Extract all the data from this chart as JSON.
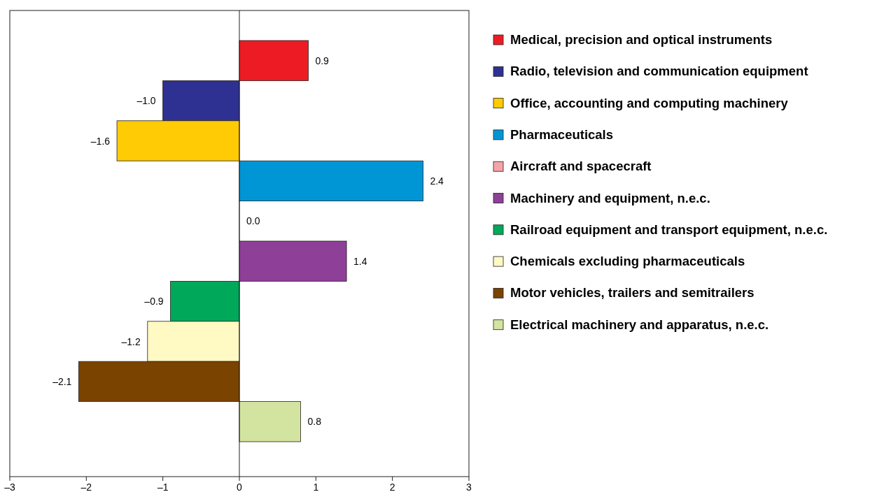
{
  "chart_data": {
    "type": "bar",
    "orientation": "horizontal",
    "categories": [
      null
    ],
    "series": [
      {
        "name": "Medical, precision and optical instruments",
        "color": "#ed1c24",
        "values": [
          0.9
        ],
        "value_labels": [
          "0.9"
        ]
      },
      {
        "name": "Radio, television and communication equipment",
        "color": "#2e3192",
        "values": [
          -1.0
        ],
        "value_labels": [
          "–1.0"
        ]
      },
      {
        "name": "Office, accounting and computing machinery",
        "color": "#ffcb05",
        "values": [
          -1.6
        ],
        "value_labels": [
          "–1.6"
        ]
      },
      {
        "name": "Pharmaceuticals",
        "color": "#0096d6",
        "values": [
          2.4
        ],
        "value_labels": [
          "2.4"
        ]
      },
      {
        "name": "Aircraft and spacecraft",
        "color": "#f4a3a8",
        "values": [
          0.0
        ],
        "value_labels": [
          "0.0"
        ]
      },
      {
        "name": "Machinery and equipment, n.e.c.",
        "color": "#8e4098",
        "values": [
          1.4
        ],
        "value_labels": [
          "1.4"
        ]
      },
      {
        "name": "Railroad equipment and transport equipment, n.e.c.",
        "color": "#00a85a",
        "values": [
          -0.9
        ],
        "value_labels": [
          "–0.9"
        ]
      },
      {
        "name": "Chemicals excluding pharmaceuticals",
        "color": "#fff9c4",
        "values": [
          -1.2
        ],
        "value_labels": [
          "–1.2"
        ]
      },
      {
        "name": "Motor vehicles, trailers and semitrailers",
        "color": "#7a4300",
        "values": [
          -2.1
        ],
        "value_labels": [
          "–2.1"
        ]
      },
      {
        "name": "Electrical machinery and apparatus, n.e.c.",
        "color": "#d2e4a0",
        "values": [
          0.8
        ],
        "value_labels": [
          "0.8"
        ]
      }
    ],
    "xlim": [
      -3,
      3
    ],
    "xticks": [
      {
        "value": -3,
        "label": "–3"
      },
      {
        "value": -2,
        "label": "–2"
      },
      {
        "value": -1,
        "label": "–1"
      },
      0,
      1,
      2,
      3
    ],
    "tick_labels": "x",
    "legend": "right"
  }
}
